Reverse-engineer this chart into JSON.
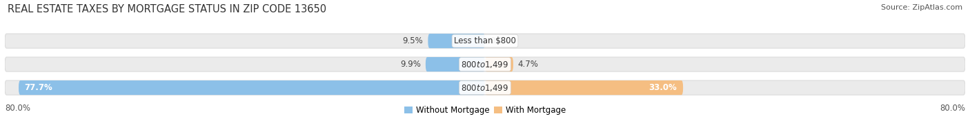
{
  "title": "Real Estate Taxes by Mortgage Status in Zip Code 13650",
  "source": "Source: ZipAtlas.com",
  "rows": [
    {
      "label": "Less than $800",
      "without_mortgage": 9.5,
      "with_mortgage": 0.0
    },
    {
      "label": "$800 to $1,499",
      "without_mortgage": 9.9,
      "with_mortgage": 4.7
    },
    {
      "label": "$800 to $1,499",
      "without_mortgage": 77.7,
      "with_mortgage": 33.0
    }
  ],
  "xlim_left": -80.0,
  "xlim_right": 80.0,
  "x_left_label": "80.0%",
  "x_right_label": "80.0%",
  "color_without": "#8CC0E8",
  "color_with": "#F5BE82",
  "bar_height": 0.62,
  "background_bar_color": "#EBEBEB",
  "background_bar_edge": "#D8D8D8",
  "legend_without": "Without Mortgage",
  "legend_with": "With Mortgage",
  "title_fontsize": 10.5,
  "source_fontsize": 8,
  "label_fontsize": 8.5,
  "tick_fontsize": 8.5
}
